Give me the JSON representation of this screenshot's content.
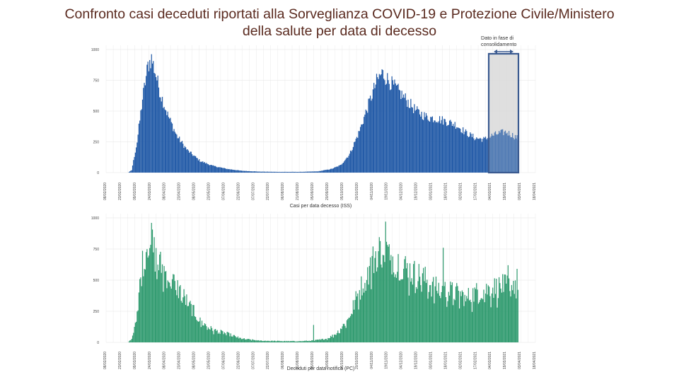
{
  "title_line1": "Confronto casi deceduti riportati alla Sorveglianza COVID-19 e Protezione Civile/Ministero",
  "title_line2": "della salute per data di decesso",
  "annotation": "Dato in fase di consolidamento",
  "colors": {
    "title": "#5a2a1f",
    "iss": "#1f58a6",
    "pc": "#2e9a6e",
    "box_stroke": "#3a5a90",
    "box_fill": "#d9d9d9"
  },
  "chart_data": [
    {
      "type": "bar",
      "name": "iss",
      "title": "",
      "xlabel": "Casi per data decesso (ISS)",
      "ylabel": "",
      "ylim": [
        0,
        1000
      ],
      "yticks": [
        0,
        250,
        500,
        750,
        1000
      ],
      "date_labels": [
        "08/02/2020",
        "23/02/2020",
        "09/03/2020",
        "24/03/2020",
        "08/04/2020",
        "23/04/2020",
        "08/05/2020",
        "23/05/2020",
        "07/06/2020",
        "22/06/2020",
        "07/07/2020",
        "22/07/2020",
        "06/08/2020",
        "21/08/2020",
        "05/09/2020",
        "20/09/2020",
        "05/10/2020",
        "20/10/2020",
        "04/11/2020",
        "19/11/2020",
        "04/12/2020",
        "19/12/2020",
        "03/01/2021",
        "18/01/2021",
        "02/02/2021",
        "17/02/2021",
        "04/03/2021",
        "19/03/2021",
        "03/04/2021",
        "18/04/2021"
      ],
      "anchors": [
        [
          0,
          0
        ],
        [
          24,
          0
        ],
        [
          28,
          20
        ],
        [
          34,
          250
        ],
        [
          40,
          600
        ],
        [
          46,
          870
        ],
        [
          50,
          930
        ],
        [
          54,
          820
        ],
        [
          60,
          640
        ],
        [
          68,
          470
        ],
        [
          78,
          300
        ],
        [
          90,
          180
        ],
        [
          104,
          95
        ],
        [
          118,
          55
        ],
        [
          134,
          30
        ],
        [
          150,
          15
        ],
        [
          170,
          8
        ],
        [
          190,
          6
        ],
        [
          215,
          6
        ],
        [
          235,
          10
        ],
        [
          250,
          30
        ],
        [
          260,
          60
        ],
        [
          270,
          150
        ],
        [
          280,
          320
        ],
        [
          290,
          530
        ],
        [
          300,
          740
        ],
        [
          306,
          810
        ],
        [
          312,
          760
        ],
        [
          322,
          680
        ],
        [
          332,
          600
        ],
        [
          344,
          500
        ],
        [
          356,
          450
        ],
        [
          366,
          440
        ],
        [
          376,
          420
        ],
        [
          388,
          390
        ],
        [
          400,
          320
        ],
        [
          410,
          280
        ],
        [
          420,
          270
        ],
        [
          428,
          300
        ],
        [
          436,
          320
        ],
        [
          444,
          330
        ],
        [
          452,
          300
        ],
        [
          457,
          280
        ]
      ],
      "consolidation_start": 425,
      "noise": 0.09
    },
    {
      "type": "bar",
      "name": "pc",
      "title": "",
      "xlabel": "Deceduti per data notifica (PC)",
      "ylabel": "",
      "ylim": [
        0,
        1000
      ],
      "yticks": [
        0,
        250,
        500,
        750,
        1000
      ],
      "date_labels": [
        "08/02/2020",
        "23/02/2020",
        "09/03/2020",
        "24/03/2020",
        "08/04/2020",
        "23/04/2020",
        "08/05/2020",
        "23/05/2020",
        "07/06/2020",
        "22/06/2020",
        "07/07/2020",
        "22/07/2020",
        "06/08/2020",
        "21/08/2020",
        "05/09/2020",
        "20/09/2020",
        "05/10/2020",
        "20/10/2020",
        "04/11/2020",
        "19/11/2020",
        "04/12/2020",
        "19/12/2020",
        "03/01/2021",
        "18/01/2021",
        "02/02/2021",
        "17/02/2021",
        "04/03/2021",
        "19/03/2021",
        "03/04/2021",
        "18/04/2021"
      ],
      "anchors": [
        [
          0,
          0
        ],
        [
          24,
          0
        ],
        [
          28,
          30
        ],
        [
          33,
          200
        ],
        [
          40,
          640
        ],
        [
          46,
          840
        ],
        [
          50,
          800
        ],
        [
          56,
          650
        ],
        [
          62,
          600
        ],
        [
          70,
          520
        ],
        [
          80,
          430
        ],
        [
          92,
          300
        ],
        [
          104,
          170
        ],
        [
          118,
          100
        ],
        [
          134,
          70
        ],
        [
          150,
          30
        ],
        [
          170,
          14
        ],
        [
          185,
          12
        ],
        [
          200,
          10
        ],
        [
          215,
          10
        ],
        [
          230,
          15
        ],
        [
          245,
          30
        ],
        [
          255,
          70
        ],
        [
          268,
          180
        ],
        [
          280,
          400
        ],
        [
          290,
          560
        ],
        [
          300,
          720
        ],
        [
          308,
          760
        ],
        [
          318,
          680
        ],
        [
          328,
          620
        ],
        [
          340,
          560
        ],
        [
          352,
          520
        ],
        [
          364,
          440
        ],
        [
          376,
          420
        ],
        [
          388,
          400
        ],
        [
          400,
          360
        ],
        [
          410,
          400
        ],
        [
          420,
          420
        ],
        [
          430,
          440
        ],
        [
          440,
          450
        ],
        [
          450,
          460
        ],
        [
          457,
          500
        ]
      ],
      "spikes": [
        [
          50,
          960
        ],
        [
          230,
          140
        ],
        [
          310,
          970
        ],
        [
          374,
          760
        ],
        [
          446,
          620
        ]
      ],
      "noise": 0.22
    }
  ]
}
